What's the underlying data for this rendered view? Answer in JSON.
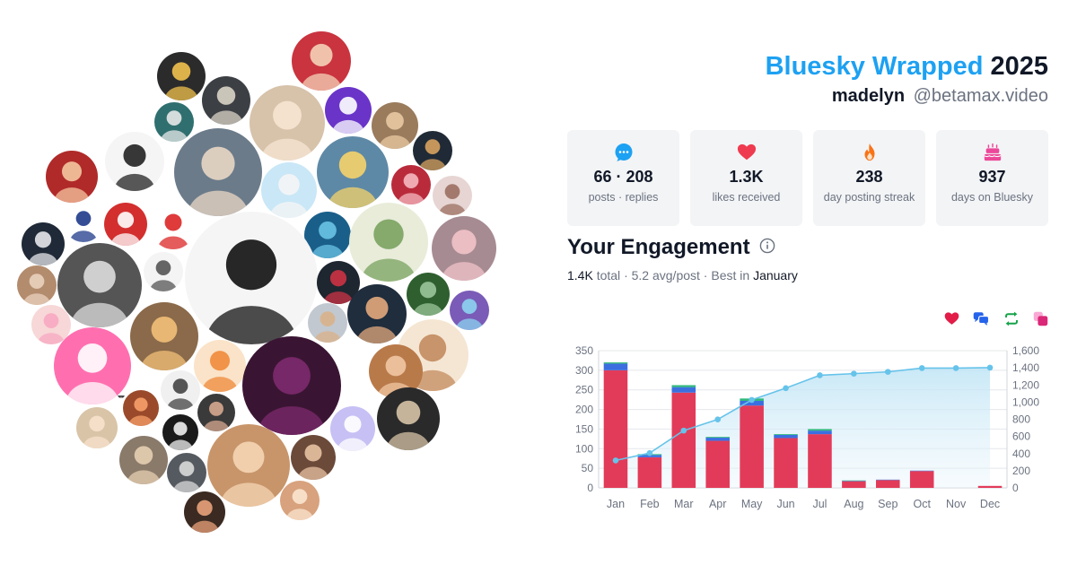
{
  "header": {
    "brand": "Bluesky Wrapped",
    "year": "2025",
    "display_name": "madelyn",
    "handle": "@betamax.video"
  },
  "stats": [
    {
      "icon": "speech-bubble-icon",
      "value": "66 · 208",
      "label": "posts · replies",
      "color": "#1da1f2"
    },
    {
      "icon": "heart-icon",
      "value": "1.3K",
      "label": "likes received",
      "color": "#ef3b4f"
    },
    {
      "icon": "flame-icon",
      "value": "238",
      "label": "day posting streak",
      "color": "#f97316"
    },
    {
      "icon": "cake-icon",
      "value": "937",
      "label": "days on Bluesky",
      "color": "#ec4899"
    }
  ],
  "engagement": {
    "title": "Your Engagement",
    "total_value": "1.4K",
    "total_word": "total",
    "avg": "5.2 avg/post",
    "best_prefix": "Best in",
    "best_month": "January"
  },
  "legend": [
    {
      "icon": "heart-icon",
      "color": "#e11d48"
    },
    {
      "icon": "replies-icon",
      "color": "#2563eb"
    },
    {
      "icon": "repost-icon",
      "color": "#16a34a"
    },
    {
      "icon": "quote-icon",
      "color": "#db2777"
    }
  ],
  "chart_data": {
    "type": "bar",
    "categories": [
      "Jan",
      "Feb",
      "Mar",
      "Apr",
      "May",
      "Jun",
      "Jul",
      "Aug",
      "Sep",
      "Oct",
      "Nov",
      "Dec"
    ],
    "series": [
      {
        "values": [
          300,
          78,
          243,
          120,
          210,
          127,
          137,
          17,
          20,
          43,
          0,
          5
        ],
        "color": "#e23b59"
      },
      {
        "values": [
          17,
          6,
          14,
          8,
          12,
          8,
          9,
          1,
          1,
          1,
          0,
          0
        ],
        "color": "#3b6fe0"
      },
      {
        "values": [
          3,
          2,
          5,
          2,
          6,
          2,
          4,
          1,
          0,
          0,
          0,
          0
        ],
        "color": "#2eb87a"
      }
    ],
    "cumulative": {
      "values": [
        320,
        406,
        668,
        798,
        1026,
        1163,
        1313,
        1332,
        1353,
        1397,
        1397,
        1402
      ],
      "color": "#66c3ea"
    },
    "ylim": [
      0,
      350
    ],
    "y_ticks": [
      0,
      50,
      100,
      150,
      200,
      250,
      300,
      350
    ],
    "y2lim": [
      0,
      1600
    ],
    "y2_ticks": [
      0,
      200,
      400,
      600,
      800,
      1000,
      1200,
      1400,
      1600
    ],
    "y2_tick_labels": [
      "0",
      "200",
      "400",
      "600",
      "800",
      "1,000",
      "1,200",
      "1,400",
      "1,600"
    ],
    "grid": true
  },
  "avatars": [
    {
      "color": "#2b2b2b",
      "accent": "#f2c14e"
    },
    {
      "color": "#3c3f44",
      "accent": "#d9d4c7"
    },
    {
      "color": "#c9343f",
      "accent": "#f4d2b8"
    },
    {
      "color": "#2f6f6f",
      "accent": "#e8e8e8"
    },
    {
      "color": "#9a7b5c",
      "accent": "#e8c9a3"
    },
    {
      "color": "#6a34c9",
      "accent": "#ffffff"
    },
    {
      "color": "#d7c2aa",
      "accent": "#f7e6d3"
    },
    {
      "color": "#f5f5f5",
      "accent": "#222222"
    },
    {
      "color": "#6b7b8a",
      "accent": "#e9d7c4"
    },
    {
      "color": "#1f2a36",
      "accent": "#d7a25f"
    },
    {
      "color": "#b02a2a",
      "accent": "#f5c6a0"
    },
    {
      "color": "#c9e7f7",
      "accent": "#f5f5f5"
    },
    {
      "color": "#5e89a6",
      "accent": "#f5d36a"
    },
    {
      "color": "#b92b3b",
      "accent": "#f5b8c0"
    },
    {
      "color": "#e6d5d3",
      "accent": "#9c6f62"
    },
    {
      "color": "#1a5f8a",
      "accent": "#69c3e3"
    },
    {
      "color": "#e8ecd9",
      "accent": "#7aa35f"
    },
    {
      "color": "#a78b92",
      "accent": "#f2c3c9"
    },
    {
      "color": "#ffffff",
      "accent": "#1e3a8a"
    },
    {
      "color": "#d32f2f",
      "accent": "#ffffff"
    },
    {
      "color": "#ffffff",
      "accent": "#dc2626"
    },
    {
      "color": "#1f2937",
      "accent": "#e5e7eb"
    },
    {
      "color": "#f4f4f4",
      "accent": "#555555"
    },
    {
      "color": "#f5f5f5",
      "accent": "#111111"
    },
    {
      "color": "#1e2630",
      "accent": "#cc3344"
    },
    {
      "color": "#2f5f2f",
      "accent": "#9bc49b"
    },
    {
      "color": "#7a5bb7",
      "accent": "#8cd3f0"
    },
    {
      "color": "#b38b6d",
      "accent": "#e9d2bd"
    },
    {
      "color": "#555555",
      "accent": "#dddddd"
    },
    {
      "color": "#1f2d3d",
      "accent": "#e2a87c"
    },
    {
      "color": "#f7d7d7",
      "accent": "#f7a8c2"
    },
    {
      "color": "#c2c8cf",
      "accent": "#d9b18a"
    },
    {
      "color": "#f5e6d3",
      "accent": "#c38b5f"
    },
    {
      "color": "#ff6fb0",
      "accent": "#ffffff"
    },
    {
      "color": "#8a6a4a",
      "accent": "#f2c078"
    },
    {
      "color": "#fae3c8",
      "accent": "#ef8a3b"
    },
    {
      "color": "#3a1533",
      "accent": "#7e2a6e"
    },
    {
      "color": "#b97a4a",
      "accent": "#f1c7a3"
    },
    {
      "color": "#c6c0f4",
      "accent": "#ffffff"
    },
    {
      "color": "#2a2a2a",
      "accent": "#d6c3a6"
    },
    {
      "color": "#f0f0f0",
      "accent": "#444444"
    },
    {
      "color": "#3a3a3a",
      "accent": "#d6a88f"
    },
    {
      "color": "#d9c4a8",
      "accent": "#f7e2cc"
    },
    {
      "color": "#9a4a2a",
      "accent": "#f7a06a"
    },
    {
      "color": "#1a1a1a",
      "accent": "#f0f0f0"
    },
    {
      "color": "#8a7a6a",
      "accent": "#e6cfb2"
    },
    {
      "color": "#555a60",
      "accent": "#d9d9d9"
    },
    {
      "color": "#c8956a",
      "accent": "#f5d5b5"
    },
    {
      "color": "#6b4a3a",
      "accent": "#e7c2a2"
    },
    {
      "color": "#d7a27d",
      "accent": "#fbe4cf"
    },
    {
      "color": "#3a2a22",
      "accent": "#e9a27a"
    },
    {
      "color": "#44484d",
      "accent": "#c9b6a4"
    }
  ]
}
